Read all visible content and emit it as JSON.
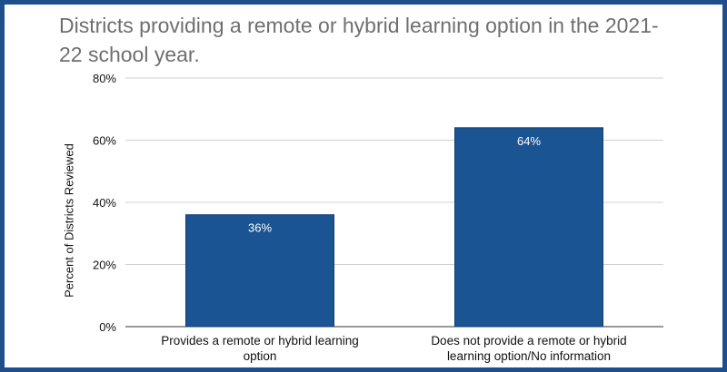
{
  "chart_data": {
    "type": "bar",
    "title": "Districts providing a remote or hybrid learning option in the 2021-\n22 school year.",
    "xlabel": "",
    "ylabel": "Percent of Districts Reviewed",
    "categories": [
      "Provides a remote or hybrid learning option",
      "Does not provide a remote or hybrid learning option/No information"
    ],
    "values": [
      36,
      64
    ],
    "value_labels": [
      "36%",
      "64%"
    ],
    "ylim": [
      0,
      80
    ],
    "yticks": [
      0,
      20,
      40,
      60,
      80
    ],
    "ytick_labels": [
      "0%",
      "20%",
      "40%",
      "60%",
      "80%"
    ],
    "grid": true,
    "legend": "none",
    "bar_color": "#1a5493",
    "value_label_color": "#ffffff",
    "grid_color": "#d0d0d0",
    "border_color": "#1e4f8c"
  }
}
